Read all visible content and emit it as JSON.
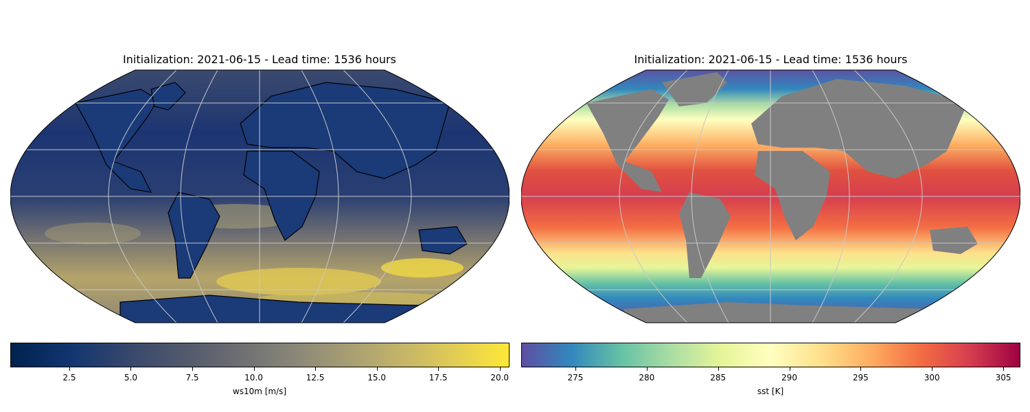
{
  "panels": [
    {
      "title": "Initialization: 2021-06-15 - Lead time: 1536 hours",
      "variable": "ws10m",
      "colorbar": {
        "label": "ws10m [m/s]",
        "ticks": [
          "2.5",
          "5.0",
          "7.5",
          "10.0",
          "12.5",
          "15.0",
          "17.5",
          "20.0"
        ],
        "tick_values": [
          2.5,
          5.0,
          7.5,
          10.0,
          12.5,
          15.0,
          17.5,
          20.0
        ],
        "range": [
          0.1,
          20.4
        ],
        "colormap": "cividis",
        "colors": [
          "#00224e",
          "#3b496c",
          "#707173",
          "#a59c74",
          "#fee838"
        ]
      },
      "map": {
        "projection": "robinson",
        "ocean_color": "#1a3470",
        "land": "coastlines-only",
        "coastline_color": "#000000"
      }
    },
    {
      "title": "Initialization: 2021-06-15 - Lead time: 1536 hours",
      "variable": "sst",
      "colorbar": {
        "label": "sst [K]",
        "ticks": [
          "275",
          "280",
          "285",
          "290",
          "295",
          "300",
          "305"
        ],
        "tick_values": [
          275,
          280,
          285,
          290,
          295,
          300,
          305
        ],
        "range": [
          271.2,
          306.2
        ],
        "colormap": "Spectral_r",
        "colors": [
          "#5e4fa2",
          "#3288bd",
          "#66c2a5",
          "#e6f598",
          "#ffffbf",
          "#fdae61",
          "#d53e4f",
          "#9e0142"
        ]
      },
      "map": {
        "projection": "robinson",
        "land_color": "#808080",
        "land": "filled"
      }
    }
  ]
}
